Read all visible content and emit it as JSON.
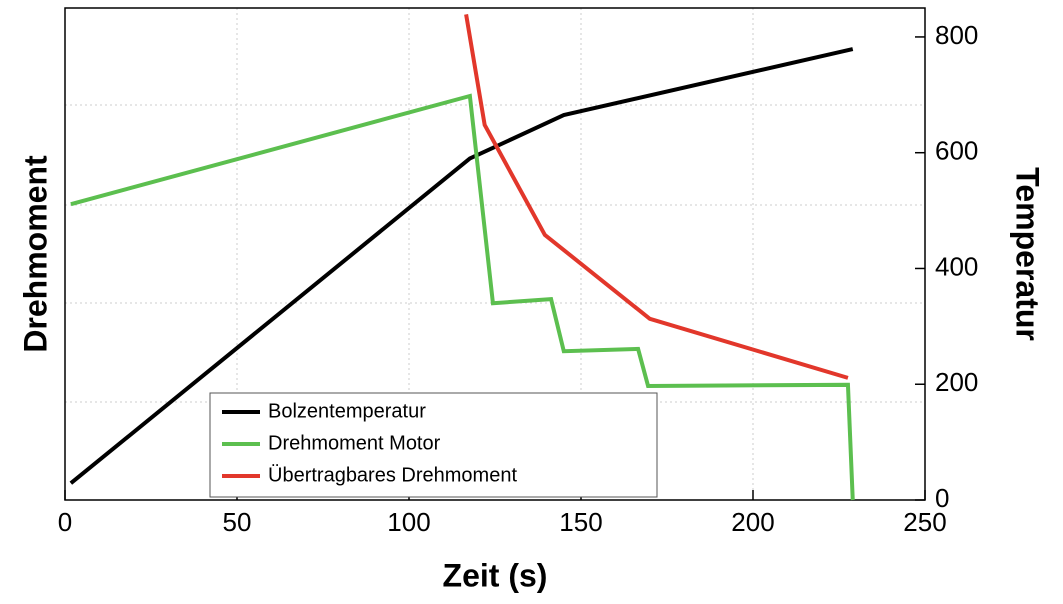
{
  "chart_data": {
    "type": "line",
    "xlabel": "Zeit (s)",
    "ylabel": "Drehmoment",
    "y2label": "Temperatur",
    "xlim": [
      0,
      250
    ],
    "xticks": [
      0,
      50,
      100,
      150,
      200,
      250
    ],
    "y2lim": [
      0,
      850
    ],
    "y2ticks": [
      0,
      200,
      400,
      600,
      800
    ],
    "grid": true,
    "legend": "bottom-left",
    "series": [
      {
        "name": "Bolzentemperatur",
        "color": "#000000",
        "axis": "y2",
        "x": [
          1.7,
          117.7,
          145,
          229
        ],
        "values": [
          29,
          590,
          665,
          779
        ]
      },
      {
        "name": "Drehmoment Motor",
        "color": "#5cbf4f",
        "axis": "y2",
        "x": [
          1.7,
          117.7,
          124.4,
          141.3,
          145,
          166.6,
          169.5,
          227.6,
          229
        ],
        "values": [
          511,
          698,
          340,
          347,
          257,
          261,
          197,
          199,
          0
        ]
      },
      {
        "name": "Übertragbares Drehmoment",
        "color": "#e2372b",
        "axis": "y2",
        "x": [
          116.6,
          122,
          139.5,
          170,
          227.6
        ],
        "values": [
          839,
          648,
          458,
          313,
          211
        ]
      }
    ]
  }
}
